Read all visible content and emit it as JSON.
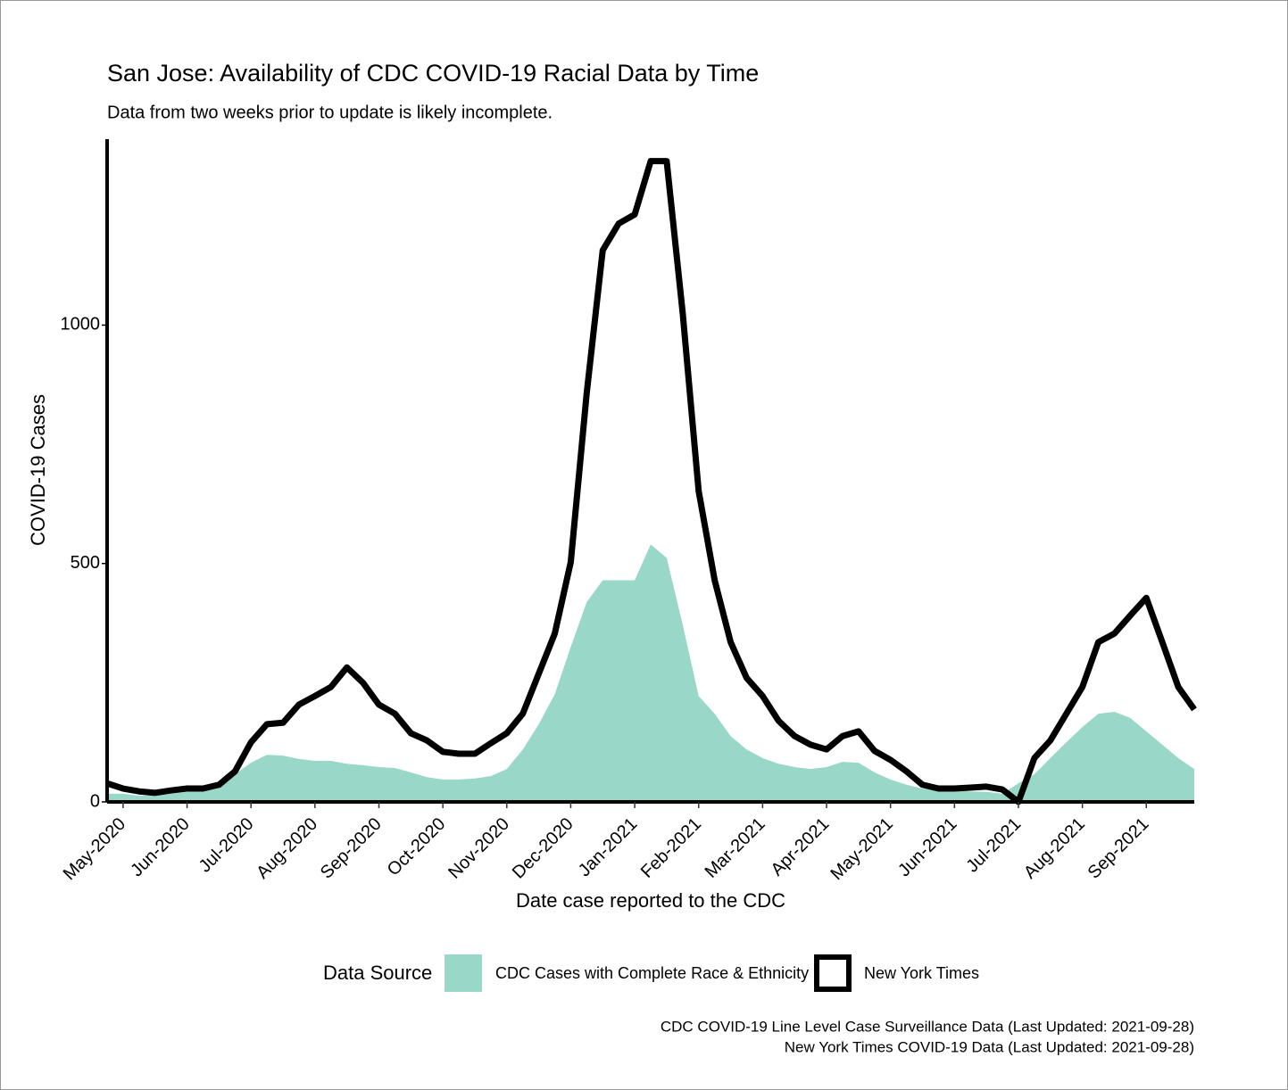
{
  "chart_data": {
    "type": "line",
    "title": "San Jose: Availability of CDC COVID-19 Racial Data by Time",
    "subtitle": "Data from two weeks prior to update is likely incomplete.",
    "x_label": "Date case reported to the CDC",
    "y_label": "COVID-19 Cases",
    "categories": [
      null,
      "May-2020",
      null,
      null,
      null,
      "Jun-2020",
      null,
      null,
      null,
      "Jul-2020",
      null,
      null,
      null,
      "Aug-2020",
      null,
      null,
      null,
      "Sep-2020",
      null,
      null,
      null,
      "Oct-2020",
      null,
      null,
      null,
      "Nov-2020",
      null,
      null,
      null,
      "Dec-2020",
      null,
      null,
      null,
      "Jan-2021",
      null,
      null,
      null,
      "Feb-2021",
      null,
      null,
      null,
      "Mar-2021",
      null,
      null,
      null,
      "Apr-2021",
      null,
      null,
      null,
      "May-2021",
      null,
      null,
      null,
      "Jun-2021",
      null,
      null,
      null,
      "Jul-2021",
      null,
      null,
      null,
      "Aug-2021",
      null,
      null,
      null,
      "Sep-2021",
      null,
      null,
      null
    ],
    "series": [
      {
        "name": "CDC Cases with Complete Race & Ethnicity",
        "type": "area",
        "color": "#99d8c9",
        "values": [
          17,
          17,
          13,
          13,
          17,
          21,
          28,
          39,
          58,
          82,
          99,
          97,
          90,
          86,
          86,
          80,
          77,
          73,
          71,
          62,
          52,
          47,
          47,
          49,
          54,
          69,
          110,
          163,
          226,
          325,
          419,
          465,
          465,
          465,
          540,
          512,
          372,
          222,
          185,
          138,
          110,
          92,
          80,
          73,
          69,
          73,
          84,
          82,
          62,
          47,
          36,
          28,
          24,
          24,
          22,
          21,
          17,
          39,
          58,
          92,
          125,
          157,
          185,
          189,
          176,
          148,
          120,
          92,
          69
        ]
      },
      {
        "name": "New York Times",
        "type": "line",
        "color": "#000000",
        "values": [
          39,
          28,
          22,
          19,
          24,
          28,
          28,
          36,
          64,
          125,
          163,
          166,
          204,
          222,
          241,
          282,
          250,
          204,
          185,
          144,
          129,
          105,
          101,
          101,
          123,
          144,
          185,
          269,
          353,
          503,
          858,
          1157,
          1213,
          1232,
          1344,
          1344,
          1026,
          652,
          465,
          335,
          260,
          222,
          170,
          138,
          120,
          110,
          138,
          148,
          107,
          88,
          64,
          36,
          28,
          28,
          30,
          32,
          26,
          0,
          92,
          129,
          185,
          241,
          335,
          353,
          391,
          428,
          335,
          241,
          194
        ]
      }
    ],
    "ylim": [
      0,
      1390
    ],
    "yticks": [
      0,
      500,
      1000
    ],
    "legend_title": "Data Source",
    "caption": [
      "CDC COVID-19 Line Level Case Surveillance Data (Last Updated: 2021-09-28)",
      "New York Times COVID-19 Data (Last Updated: 2021-09-28)"
    ]
  }
}
